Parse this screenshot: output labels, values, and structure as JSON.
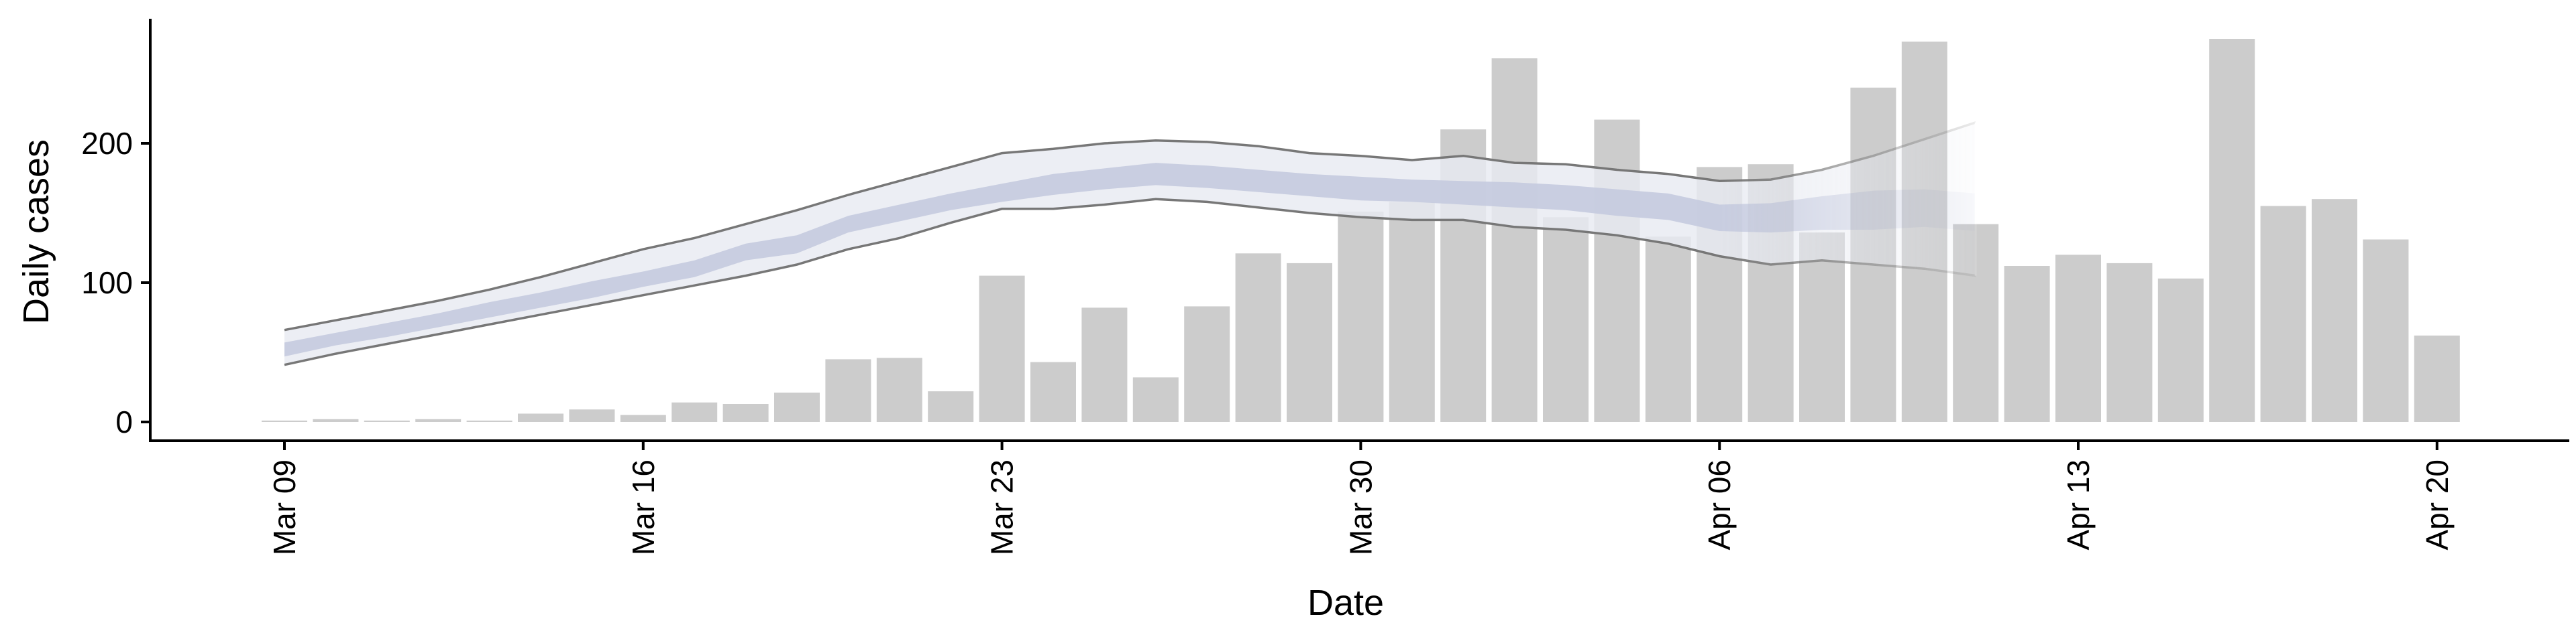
{
  "chart_data": {
    "type": "bar",
    "title": "",
    "xlabel": "Date",
    "ylabel": "Daily cases",
    "ylim": [
      -12,
      290
    ],
    "yticks": [
      0,
      100,
      200
    ],
    "xtick_labels": [
      "Mar 09",
      "Mar 16",
      "Mar 23",
      "Mar 30",
      "Apr 06",
      "Apr 13",
      "Apr 20"
    ],
    "xtick_dates": [
      "2020-03-09",
      "2020-03-16",
      "2020-03-23",
      "2020-03-30",
      "2020-04-06",
      "2020-04-13",
      "2020-04-20"
    ],
    "grid": false,
    "legend": "none",
    "colors": {
      "bars": "#cccccc",
      "outer_band": "#e8eaf2",
      "inner_band": "#c5cbdf",
      "band_edge": "#777777",
      "axis": "#000000"
    },
    "dates": [
      "2020-03-09",
      "2020-03-10",
      "2020-03-11",
      "2020-03-12",
      "2020-03-13",
      "2020-03-14",
      "2020-03-15",
      "2020-03-16",
      "2020-03-17",
      "2020-03-18",
      "2020-03-19",
      "2020-03-20",
      "2020-03-21",
      "2020-03-22",
      "2020-03-23",
      "2020-03-24",
      "2020-03-25",
      "2020-03-26",
      "2020-03-27",
      "2020-03-28",
      "2020-03-29",
      "2020-03-30",
      "2020-03-31",
      "2020-04-01",
      "2020-04-02",
      "2020-04-03",
      "2020-04-04",
      "2020-04-05",
      "2020-04-06",
      "2020-04-07",
      "2020-04-08",
      "2020-04-09",
      "2020-04-10",
      "2020-04-11",
      "2020-04-12",
      "2020-04-13",
      "2020-04-14",
      "2020-04-15",
      "2020-04-16",
      "2020-04-17",
      "2020-04-18",
      "2020-04-19",
      "2020-04-20"
    ],
    "series": [
      {
        "type": "bar",
        "values": [
          1,
          2,
          1,
          2,
          1,
          6,
          9,
          5,
          14,
          13,
          21,
          45,
          46,
          22,
          105,
          43,
          82,
          32,
          83,
          121,
          114,
          151,
          158,
          210,
          261,
          147,
          217,
          133,
          183,
          185,
          136,
          240,
          273,
          142,
          112,
          120,
          114,
          103,
          275,
          155,
          160,
          131,
          62
        ]
      },
      {
        "type": "band",
        "dates": [
          "2020-03-09",
          "2020-03-10",
          "2020-03-11",
          "2020-03-12",
          "2020-03-13",
          "2020-03-14",
          "2020-03-15",
          "2020-03-16",
          "2020-03-17",
          "2020-03-18",
          "2020-03-19",
          "2020-03-20",
          "2020-03-21",
          "2020-03-22",
          "2020-03-23",
          "2020-03-24",
          "2020-03-25",
          "2020-03-26",
          "2020-03-27",
          "2020-03-28",
          "2020-03-29",
          "2020-03-30",
          "2020-03-31",
          "2020-04-01",
          "2020-04-02",
          "2020-04-03",
          "2020-04-04",
          "2020-04-05",
          "2020-04-06",
          "2020-04-07",
          "2020-04-08",
          "2020-04-09",
          "2020-04-10",
          "2020-04-11"
        ],
        "upper90": [
          66,
          73,
          80,
          87,
          95,
          104,
          114,
          124,
          132,
          142,
          152,
          163,
          173,
          183,
          193,
          196,
          200,
          202,
          201,
          198,
          193,
          191,
          188,
          191,
          186,
          185,
          181,
          178,
          173,
          174,
          181,
          191,
          203,
          215
        ],
        "lower90": [
          41,
          49,
          56,
          63,
          70,
          77,
          84,
          91,
          98,
          105,
          113,
          124,
          132,
          143,
          153,
          153,
          156,
          160,
          158,
          154,
          150,
          147,
          145,
          145,
          140,
          138,
          134,
          128,
          119,
          113,
          116,
          113,
          110,
          105
        ],
        "upper50": [
          57,
          64,
          71,
          78,
          86,
          93,
          101,
          108,
          116,
          128,
          134,
          148,
          156,
          164,
          171,
          178,
          182,
          186,
          184,
          181,
          178,
          176,
          174,
          173,
          172,
          170,
          167,
          164,
          156,
          157,
          162,
          166,
          167,
          164
        ],
        "lower50": [
          47,
          55,
          61,
          68,
          75,
          82,
          89,
          97,
          104,
          116,
          121,
          136,
          144,
          152,
          158,
          163,
          167,
          170,
          168,
          165,
          162,
          159,
          158,
          156,
          154,
          152,
          148,
          145,
          137,
          136,
          138,
          138,
          140,
          137
        ],
        "fade_from": "2020-04-06"
      }
    ]
  }
}
